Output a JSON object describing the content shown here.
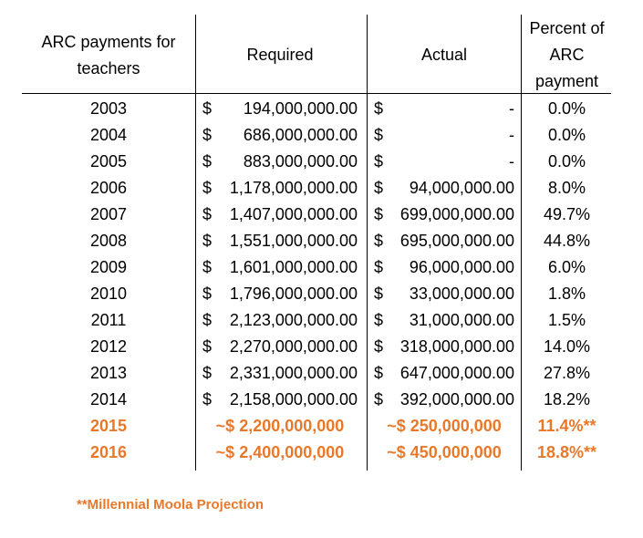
{
  "table": {
    "headers": {
      "year": "ARC payments for teachers",
      "required": "Required",
      "actual": "Actual",
      "percent": "Percent of ARC payment"
    },
    "rows": [
      {
        "year": "2003",
        "required": "$   194,000,000.00",
        "actual": "$             -",
        "percent": "0.0%"
      },
      {
        "year": "2004",
        "required": "$   686,000,000.00",
        "actual": "$             -",
        "percent": "0.0%"
      },
      {
        "year": "2005",
        "required": "$   883,000,000.00",
        "actual": "$             -",
        "percent": "0.0%"
      },
      {
        "year": "2006",
        "required": "$1,178,000,000.00",
        "actual": "$  94,000,000.00",
        "percent": "8.0%"
      },
      {
        "year": "2007",
        "required": "$1,407,000,000.00",
        "actual": "$699,000,000.00",
        "percent": "49.7%"
      },
      {
        "year": "2008",
        "required": "$1,551,000,000.00",
        "actual": "$695,000,000.00",
        "percent": "44.8%"
      },
      {
        "year": "2009",
        "required": "$1,601,000,000.00",
        "actual": "$  96,000,000.00",
        "percent": "6.0%"
      },
      {
        "year": "2010",
        "required": "$1,796,000,000.00",
        "actual": "$  33,000,000.00",
        "percent": "1.8%"
      },
      {
        "year": "2011",
        "required": "$2,123,000,000.00",
        "actual": "$  31,000,000.00",
        "percent": "1.5%"
      },
      {
        "year": "2012",
        "required": "$2,270,000,000.00",
        "actual": "$318,000,000.00",
        "percent": "14.0%"
      },
      {
        "year": "2013",
        "required": "$2,331,000,000.00",
        "actual": "$647,000,000.00",
        "percent": "27.8%"
      },
      {
        "year": "2014",
        "required": "$2,158,000,000.00",
        "actual": "$392,000,000.00",
        "percent": "18.2%"
      },
      {
        "year": "2015",
        "required": "~$ 2,200,000,000",
        "actual": "~$ 250,000,000",
        "percent": "11.4%**",
        "projection": true
      },
      {
        "year": "2016",
        "required": "~$ 2,400,000,000",
        "actual": "~$ 450,000,000",
        "percent": "18.8%**",
        "projection": true
      }
    ]
  },
  "footnote": "**Millennial Moola Projection",
  "colors": {
    "projection": "#E8782A",
    "text": "#000000"
  }
}
